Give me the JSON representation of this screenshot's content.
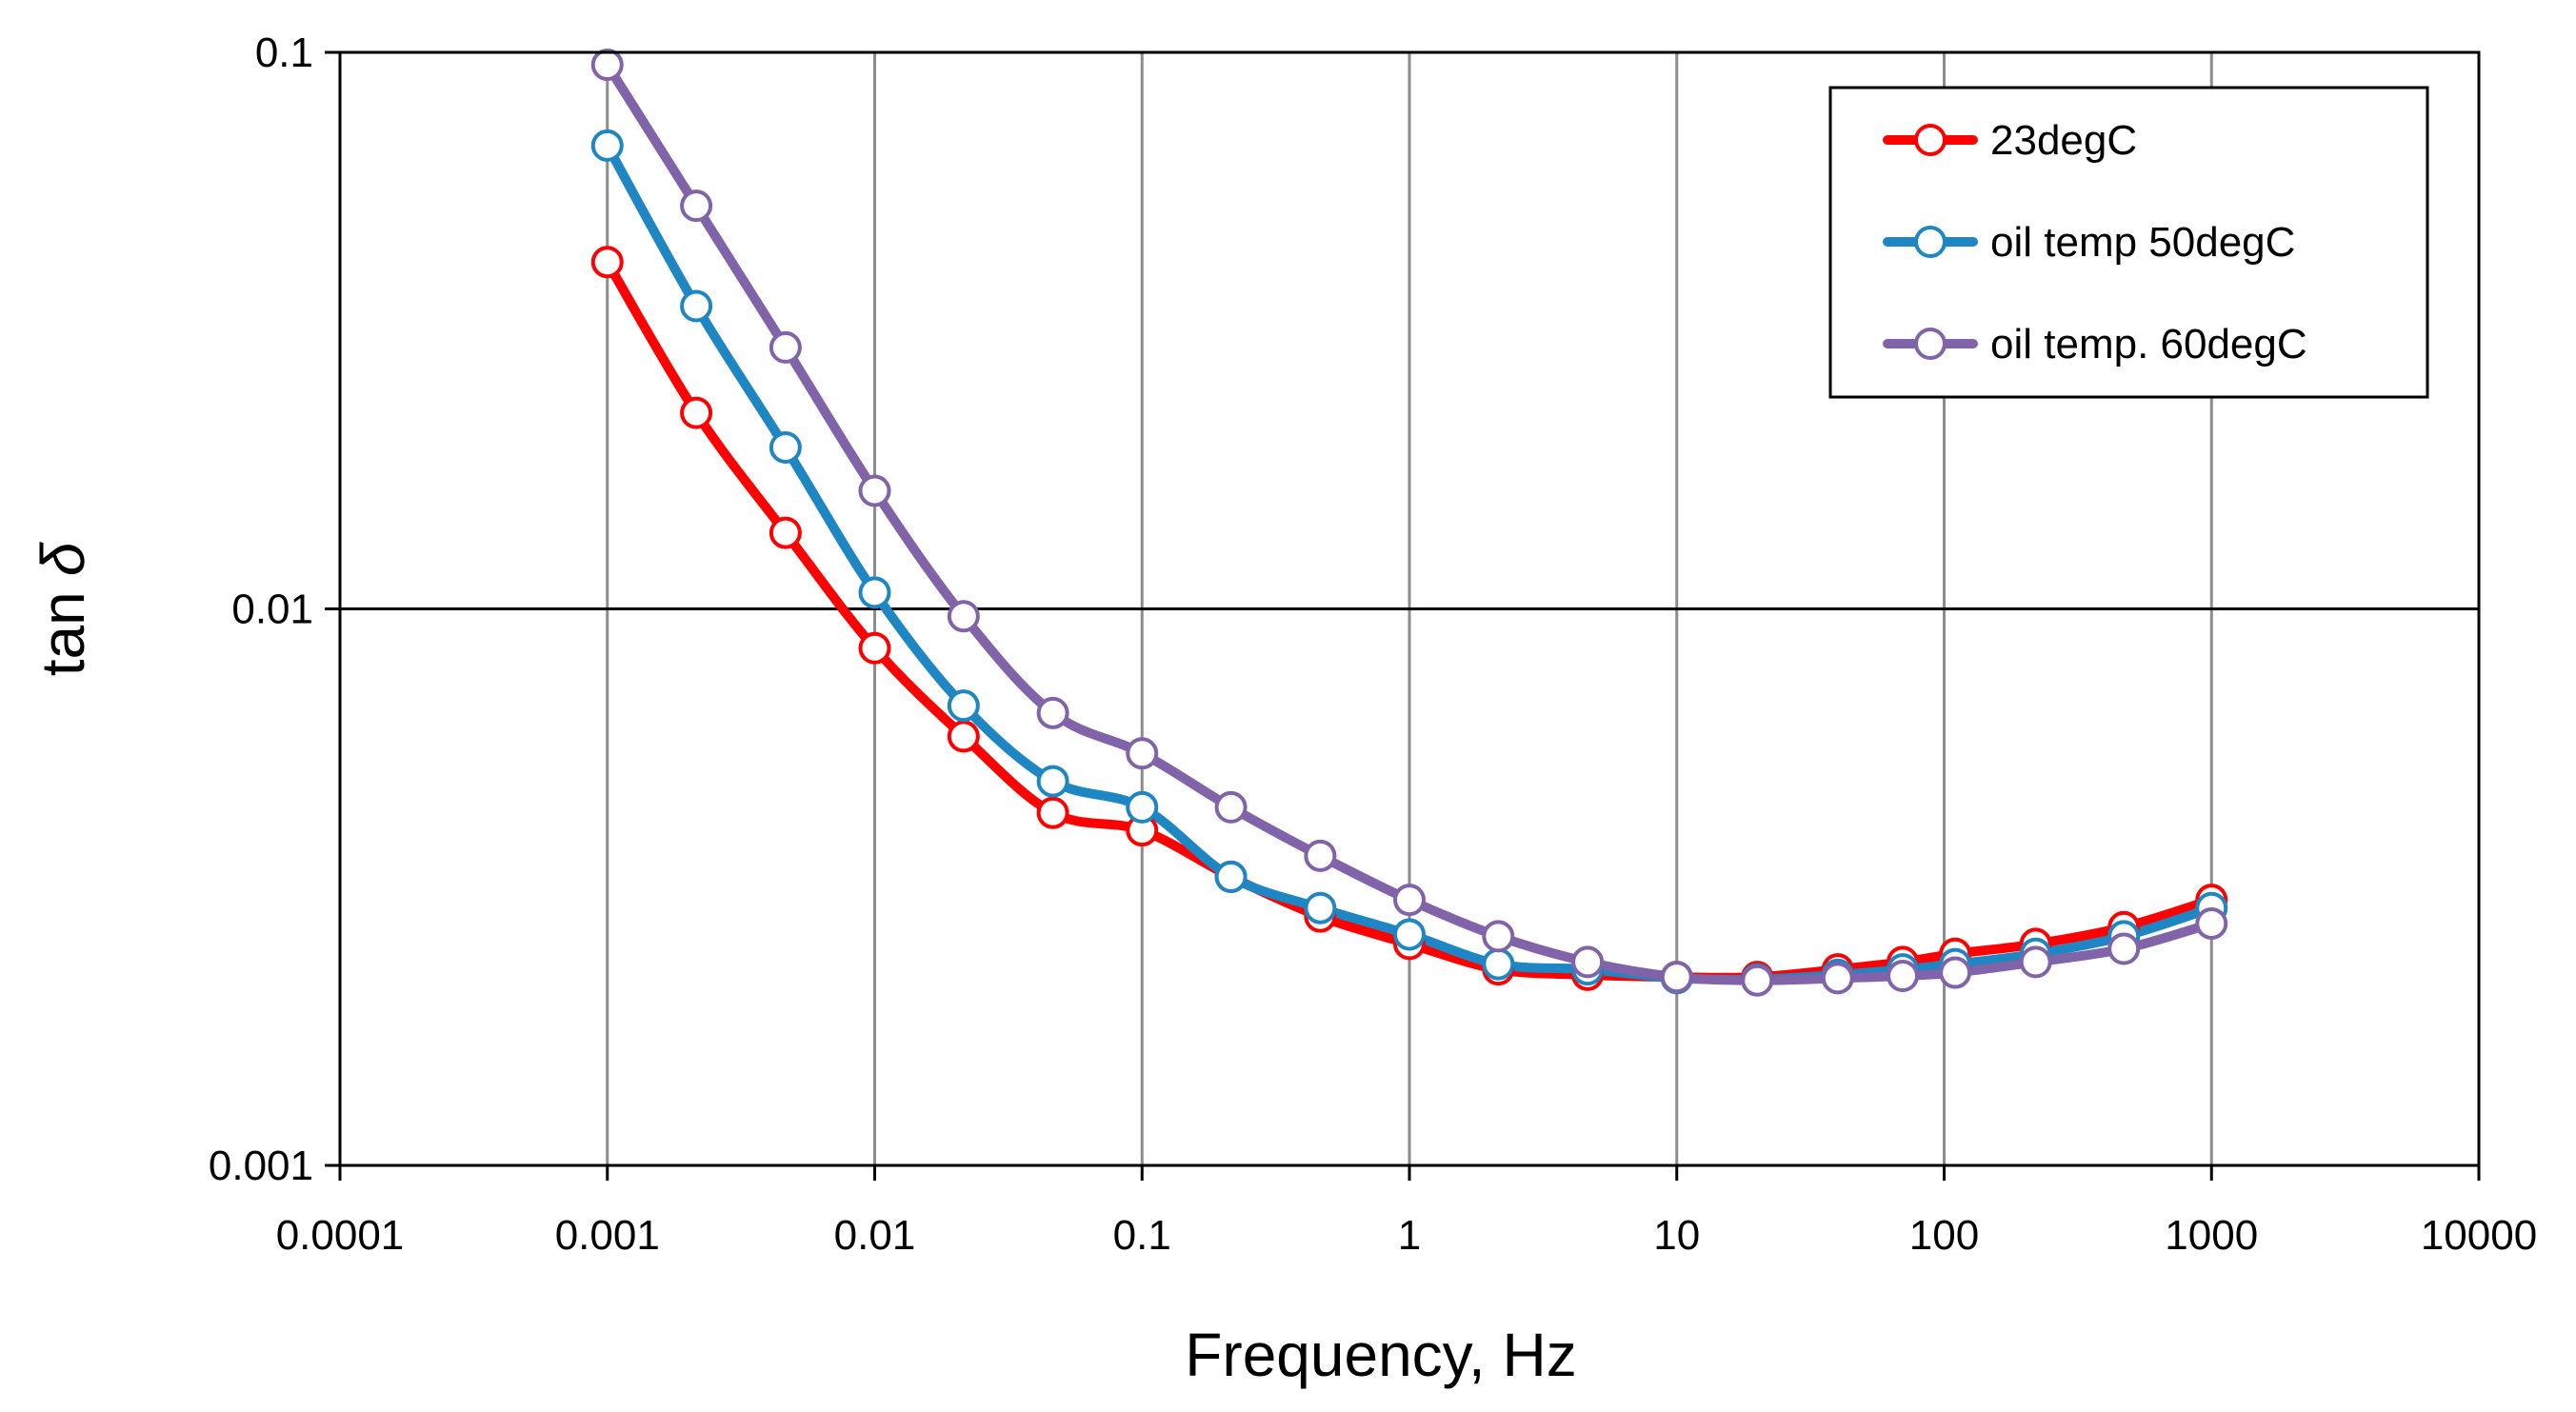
{
  "chart_data": {
    "type": "line",
    "title": "",
    "xlabel": "Frequency, Hz",
    "ylabel": "tan δ",
    "ylabel_parts": {
      "prefix": "tan",
      "symbol": "δ"
    },
    "xscale": "log",
    "yscale": "log",
    "xlim": [
      0.0001,
      10000
    ],
    "ylim": [
      0.001,
      0.1
    ],
    "x_tick_values": [
      0.0001,
      0.001,
      0.01,
      0.1,
      1,
      10,
      100,
      1000,
      10000
    ],
    "x_tick_labels": [
      "0.0001",
      "0.001",
      "0.01",
      "0.1",
      "1",
      "10",
      "100",
      "1000",
      "10000"
    ],
    "y_tick_values": [
      0.001,
      0.01,
      0.1
    ],
    "y_tick_labels": [
      "0.001",
      "0.01",
      "0.1"
    ],
    "grid": true,
    "legend_position": "top-right",
    "series": [
      {
        "name": "23degC",
        "color": "#ff0000",
        "x": [
          0.001,
          0.00215,
          0.00464,
          0.01,
          0.0215,
          0.0464,
          0.1,
          0.215,
          0.464,
          1,
          2.15,
          4.64,
          10,
          20,
          40,
          70,
          110,
          220,
          470,
          1000
        ],
        "values": [
          0.042,
          0.0225,
          0.0137,
          0.0085,
          0.0059,
          0.0043,
          0.004,
          0.0033,
          0.0028,
          0.0025,
          0.00225,
          0.0022,
          0.00218,
          0.00218,
          0.00225,
          0.00232,
          0.0024,
          0.0025,
          0.00268,
          0.003
        ]
      },
      {
        "name": "oil temp 50degC",
        "color": "#1f86c4",
        "x": [
          0.001,
          0.00215,
          0.00464,
          0.01,
          0.0215,
          0.0464,
          0.1,
          0.215,
          0.464,
          1,
          2.15,
          4.64,
          10,
          20,
          40,
          70,
          110,
          220,
          470,
          1000
        ],
        "values": [
          0.068,
          0.035,
          0.0195,
          0.0107,
          0.0067,
          0.0049,
          0.0044,
          0.0033,
          0.0029,
          0.0026,
          0.0023,
          0.00225,
          0.00217,
          0.00216,
          0.0022,
          0.00225,
          0.0023,
          0.0024,
          0.00258,
          0.0029
        ]
      },
      {
        "name": "oil temp. 60degC",
        "color": "#8063a9",
        "x": [
          0.001,
          0.00215,
          0.00464,
          0.01,
          0.0215,
          0.0464,
          0.1,
          0.215,
          0.464,
          1,
          2.15,
          4.64,
          10,
          20,
          40,
          70,
          110,
          220,
          470,
          1000
        ],
        "values": [
          0.095,
          0.053,
          0.0295,
          0.0163,
          0.0097,
          0.0065,
          0.0055,
          0.0044,
          0.0036,
          0.003,
          0.00258,
          0.00232,
          0.00218,
          0.00215,
          0.00217,
          0.00219,
          0.00222,
          0.00232,
          0.00245,
          0.00272
        ]
      }
    ]
  }
}
